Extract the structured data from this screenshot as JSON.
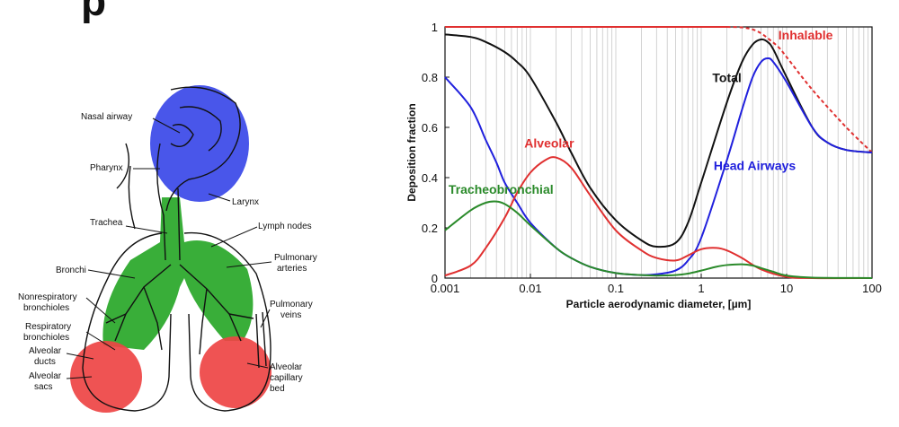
{
  "slide": {
    "title_fragment": "p"
  },
  "anatomy": {
    "labels": {
      "nasal_airway": "Nasal airway",
      "pharynx": "Pharynx",
      "larynx": "Larynx",
      "trachea": "Trachea",
      "lymph_nodes": "Lymph nodes",
      "bronchi": "Bronchi",
      "pulmonary_arteries_1": "Pulmonary",
      "pulmonary_arteries_2": "arteries",
      "nonrespiratory_1": "Nonrespiratory",
      "nonrespiratory_2": "bronchioles",
      "respiratory_1": "Respiratory",
      "respiratory_2": "bronchioles",
      "pulmonary_veins_1": "Pulmonary",
      "pulmonary_veins_2": "veins",
      "alveolar_ducts_1": "Alveolar",
      "alveolar_ducts_2": "ducts",
      "alveolar_sacs_1": "Alveolar",
      "alveolar_sacs_2": "sacs",
      "alveolar_capillary_1": "Alveolar",
      "alveolar_capillary_2": "capillary",
      "alveolar_capillary_3": "bed"
    },
    "region_colors": {
      "head": "#3a48e8",
      "tracheobronchial": "#2eaa2e",
      "alveolar": "#ee4444"
    }
  },
  "chart_data": {
    "type": "line",
    "xlabel": "Particle aerodynamic diameter, [µm]",
    "ylabel": "Deposition fraction",
    "x_scale": "log",
    "xlim": [
      0.001,
      100
    ],
    "ylim": [
      0,
      1
    ],
    "x_ticks": [
      0.001,
      0.01,
      0.1,
      1,
      10,
      100
    ],
    "x_tick_labels": [
      "0.001",
      "0.01",
      "0.1",
      "1",
      "10",
      "100"
    ],
    "y_ticks": [
      0,
      0.2,
      0.4,
      0.6,
      0.8,
      1
    ],
    "y_tick_labels": [
      "0",
      "0.2",
      "0.4",
      "0.6",
      "0.8",
      "1"
    ],
    "grid": "vertical minor lines",
    "series": [
      {
        "name": "Inhalable",
        "color": "#e03030",
        "dashed_after": 2,
        "x": [
          0.001,
          0.01,
          0.1,
          1,
          2,
          3,
          4,
          5,
          6,
          8,
          10,
          20,
          50,
          100
        ],
        "y": [
          1,
          1,
          1,
          1,
          1,
          0.998,
          0.99,
          0.975,
          0.955,
          0.92,
          0.88,
          0.75,
          0.6,
          0.5
        ]
      },
      {
        "name": "Total",
        "color": "#111111",
        "x": [
          0.001,
          0.002,
          0.003,
          0.005,
          0.007,
          0.01,
          0.02,
          0.03,
          0.05,
          0.1,
          0.2,
          0.3,
          0.5,
          0.7,
          1,
          2,
          3,
          4,
          5,
          6,
          7,
          10,
          20,
          30,
          50,
          100
        ],
        "y": [
          0.97,
          0.96,
          0.94,
          0.9,
          0.86,
          0.8,
          0.62,
          0.5,
          0.36,
          0.23,
          0.15,
          0.125,
          0.14,
          0.22,
          0.38,
          0.7,
          0.86,
          0.93,
          0.95,
          0.94,
          0.91,
          0.8,
          0.6,
          0.54,
          0.51,
          0.5
        ]
      },
      {
        "name": "Head Airways",
        "color": "#2020dd",
        "x": [
          0.001,
          0.002,
          0.003,
          0.004,
          0.005,
          0.007,
          0.01,
          0.02,
          0.03,
          0.05,
          0.1,
          0.2,
          0.3,
          0.5,
          0.7,
          1,
          2,
          3,
          4,
          5,
          6,
          7,
          10,
          20,
          30,
          50,
          100
        ],
        "y": [
          0.8,
          0.68,
          0.55,
          0.46,
          0.38,
          0.3,
          0.22,
          0.12,
          0.08,
          0.045,
          0.02,
          0.012,
          0.015,
          0.03,
          0.07,
          0.16,
          0.47,
          0.67,
          0.8,
          0.86,
          0.875,
          0.86,
          0.78,
          0.6,
          0.54,
          0.51,
          0.5
        ]
      },
      {
        "name": "Alveolar",
        "color": "#e03030",
        "x": [
          0.001,
          0.002,
          0.003,
          0.005,
          0.007,
          0.01,
          0.015,
          0.02,
          0.03,
          0.05,
          0.1,
          0.2,
          0.3,
          0.5,
          0.7,
          1,
          1.5,
          2,
          3,
          5,
          10,
          20,
          100
        ],
        "y": [
          0.01,
          0.05,
          0.12,
          0.24,
          0.34,
          0.42,
          0.47,
          0.48,
          0.44,
          0.33,
          0.19,
          0.11,
          0.08,
          0.07,
          0.09,
          0.115,
          0.12,
          0.11,
          0.08,
          0.035,
          0.005,
          0,
          0
        ]
      },
      {
        "name": "Tracheobronchial",
        "color": "#2a8a2a",
        "x": [
          0.001,
          0.002,
          0.003,
          0.004,
          0.005,
          0.007,
          0.01,
          0.02,
          0.03,
          0.05,
          0.1,
          0.2,
          0.3,
          0.5,
          0.7,
          1,
          1.5,
          2,
          3,
          4,
          5,
          7,
          10,
          20,
          100
        ],
        "y": [
          0.19,
          0.27,
          0.3,
          0.305,
          0.295,
          0.26,
          0.21,
          0.12,
          0.08,
          0.045,
          0.02,
          0.012,
          0.01,
          0.012,
          0.018,
          0.03,
          0.045,
          0.052,
          0.055,
          0.05,
          0.04,
          0.025,
          0.01,
          0.002,
          0
        ]
      }
    ]
  }
}
